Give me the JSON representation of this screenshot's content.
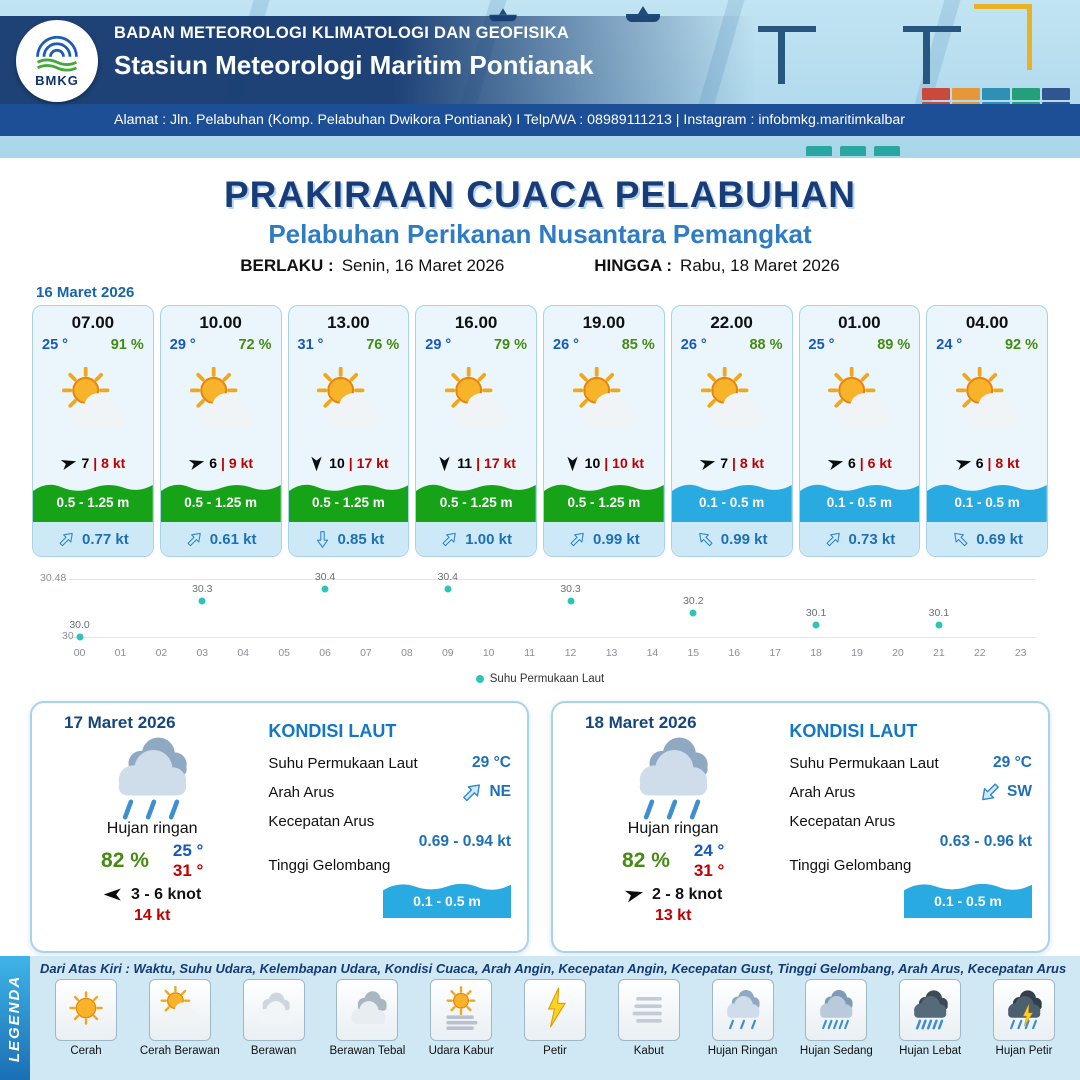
{
  "header": {
    "org": "BADAN METEOROLOGI KLIMATOLOGI DAN GEOFISIKA",
    "station": "Stasiun Meteorologi Maritim Pontianak",
    "address": "Alamat : Jln. Pelabuhan (Komp. Pelabuhan Dwikora Pontianak) I Telp/WA : 08989111213 | Instagram : infobmkg.maritimkalbar",
    "logo_text": "BMKG"
  },
  "title": {
    "main": "PRAKIRAAN CUACA PELABUHAN",
    "subtitle": "Pelabuhan Perikanan Nusantara Pemangkat",
    "berlaku_label": "BERLAKU :",
    "berlaku_value": "Senin, 16 Maret 2026",
    "hingga_label": "HINGGA :",
    "hingga_value": "Rabu, 18 Maret 2026"
  },
  "forecast_date": "16 Maret 2026",
  "ui": {
    "gust_sep": "|"
  },
  "colors": {
    "wave_green": "#17a317",
    "wave_blue": "#29abe2",
    "point_teal": "#2ec4b6"
  },
  "forecast_cards": [
    {
      "time": "07.00",
      "temp": "25 °",
      "humidity": "91 %",
      "icon": "cerah-berawan",
      "wind_dir_deg": -15,
      "wind_speed": "7",
      "wind_gust": "8 kt",
      "wave_height": "0.5 - 1.25 m",
      "wave_color": "#17a317",
      "current_dir_deg": -45,
      "current_speed": "0.77 kt"
    },
    {
      "time": "10.00",
      "temp": "29 °",
      "humidity": "72 %",
      "icon": "cerah-berawan",
      "wind_dir_deg": -15,
      "wind_speed": "6",
      "wind_gust": "9 kt",
      "wave_height": "0.5 - 1.25 m",
      "wave_color": "#17a317",
      "current_dir_deg": -45,
      "current_speed": "0.61 kt"
    },
    {
      "time": "13.00",
      "temp": "31 °",
      "humidity": "76 %",
      "icon": "cerah-berawan",
      "wind_dir_deg": 90,
      "wind_speed": "10",
      "wind_gust": "17 kt",
      "wave_height": "0.5 - 1.25 m",
      "wave_color": "#17a317",
      "current_dir_deg": 90,
      "current_speed": "0.85 kt"
    },
    {
      "time": "16.00",
      "temp": "29 °",
      "humidity": "79 %",
      "icon": "cerah-berawan",
      "wind_dir_deg": 90,
      "wind_speed": "11",
      "wind_gust": "17 kt",
      "wave_height": "0.5 - 1.25 m",
      "wave_color": "#17a317",
      "current_dir_deg": -45,
      "current_speed": "1.00 kt"
    },
    {
      "time": "19.00",
      "temp": "26 °",
      "humidity": "85 %",
      "icon": "cerah-berawan",
      "wind_dir_deg": 90,
      "wind_speed": "10",
      "wind_gust": "10 kt",
      "wave_height": "0.5 - 1.25 m",
      "wave_color": "#17a317",
      "current_dir_deg": -45,
      "current_speed": "0.99 kt"
    },
    {
      "time": "22.00",
      "temp": "26 °",
      "humidity": "88 %",
      "icon": "cerah-berawan",
      "wind_dir_deg": -15,
      "wind_speed": "7",
      "wind_gust": "8 kt",
      "wave_height": "0.1 - 0.5 m",
      "wave_color": "#29abe2",
      "current_dir_deg": -135,
      "current_speed": "0.99 kt"
    },
    {
      "time": "01.00",
      "temp": "25 °",
      "humidity": "89 %",
      "icon": "cerah-berawan",
      "wind_dir_deg": -15,
      "wind_speed": "6",
      "wind_gust": "6 kt",
      "wave_height": "0.1 - 0.5 m",
      "wave_color": "#29abe2",
      "current_dir_deg": -45,
      "current_speed": "0.73 kt"
    },
    {
      "time": "04.00",
      "temp": "24 °",
      "humidity": "92 %",
      "icon": "cerah-berawan",
      "wind_dir_deg": -15,
      "wind_speed": "6",
      "wind_gust": "8 kt",
      "wave_height": "0.1 - 0.5 m",
      "wave_color": "#29abe2",
      "current_dir_deg": -135,
      "current_speed": "0.69 kt"
    }
  ],
  "chart_data": {
    "type": "scatter",
    "title": "Suhu Permukaan Laut",
    "x": [
      0,
      3,
      6,
      9,
      12,
      15,
      18,
      21
    ],
    "values": [
      30.0,
      30.3,
      30.4,
      30.4,
      30.3,
      30.2,
      30.1,
      30.1
    ],
    "point_labels": [
      "30.0",
      "30.3",
      "30.4",
      "30.4",
      "30.3",
      "30.2",
      "30.1",
      "30.1"
    ],
    "x_ticks": [
      "00",
      "01",
      "02",
      "03",
      "04",
      "05",
      "06",
      "07",
      "08",
      "09",
      "10",
      "11",
      "12",
      "13",
      "14",
      "15",
      "16",
      "17",
      "18",
      "19",
      "20",
      "21",
      "22",
      "23"
    ],
    "ylim": [
      30,
      30.48
    ],
    "y_top_label": "30.48",
    "y_bottom_label": "30",
    "legend": "Suhu Permukaan Laut",
    "legend_position": "bottom-center",
    "grid": false,
    "point_color": "#2ec4b6"
  },
  "daily": [
    {
      "date": "17 Maret 2026",
      "icon": "hujan-ringan",
      "condition": "Hujan ringan",
      "temp_min": "25 °",
      "temp_max": "31 °",
      "humidity": "82 %",
      "wind_dir_deg": 180,
      "wind_range": "3  - 6 knot",
      "gust": "14 kt",
      "sea": {
        "heading": "KONDISI LAUT",
        "sst_label": "Suhu Permukaan Laut",
        "sst_value": "29 °C",
        "arah_label": "Arah Arus",
        "arah_value": "NE",
        "arah_deg": -45,
        "kecepatan_label": "Kecepatan Arus",
        "kecepatan_value": "0.69 - 0.94 kt",
        "gelombang_label": "Tinggi Gelombang",
        "gelombang_value": "0.1 - 0.5 m"
      }
    },
    {
      "date": "18 Maret 2026",
      "icon": "hujan-ringan",
      "condition": "Hujan ringan",
      "temp_min": "24 °",
      "temp_max": "31 °",
      "humidity": "82 %",
      "wind_dir_deg": -15,
      "wind_range": "2  - 8 knot",
      "gust": "13 kt",
      "sea": {
        "heading": "KONDISI LAUT",
        "sst_label": "Suhu Permukaan Laut",
        "sst_value": "29 °C",
        "arah_label": "Arah Arus",
        "arah_value": "SW",
        "arah_deg": 135,
        "kecepatan_label": "Kecepatan Arus",
        "kecepatan_value": "0.63 - 0.96 kt",
        "gelombang_label": "Tinggi Gelombang",
        "gelombang_value": "0.1 - 0.5 m"
      }
    }
  ],
  "legend": {
    "title": "LEGENDA",
    "description": "Dari Atas Kiri : Waktu, Suhu Udara, Kelembapan Udara, Kondisi Cuaca, Arah Angin, Kecepatan Angin, Kecepatan Gust, Tinggi Gelombang, Arah Arus, Kecepatan Arus",
    "items": [
      {
        "label": "Cerah",
        "icon": "cerah"
      },
      {
        "label": "Cerah Berawan",
        "icon": "cerah-berawan"
      },
      {
        "label": "Berawan",
        "icon": "berawan"
      },
      {
        "label": "Berawan Tebal",
        "icon": "berawan-tebal"
      },
      {
        "label": "Udara Kabur",
        "icon": "udara-kabur"
      },
      {
        "label": "Petir",
        "icon": "petir"
      },
      {
        "label": "Kabut",
        "icon": "kabut"
      },
      {
        "label": "Hujan Ringan",
        "icon": "hujan-ringan"
      },
      {
        "label": "Hujan Sedang",
        "icon": "hujan-sedang"
      },
      {
        "label": "Hujan Lebat",
        "icon": "hujan-lebat"
      },
      {
        "label": "Hujan Petir",
        "icon": "hujan-petir"
      }
    ]
  }
}
